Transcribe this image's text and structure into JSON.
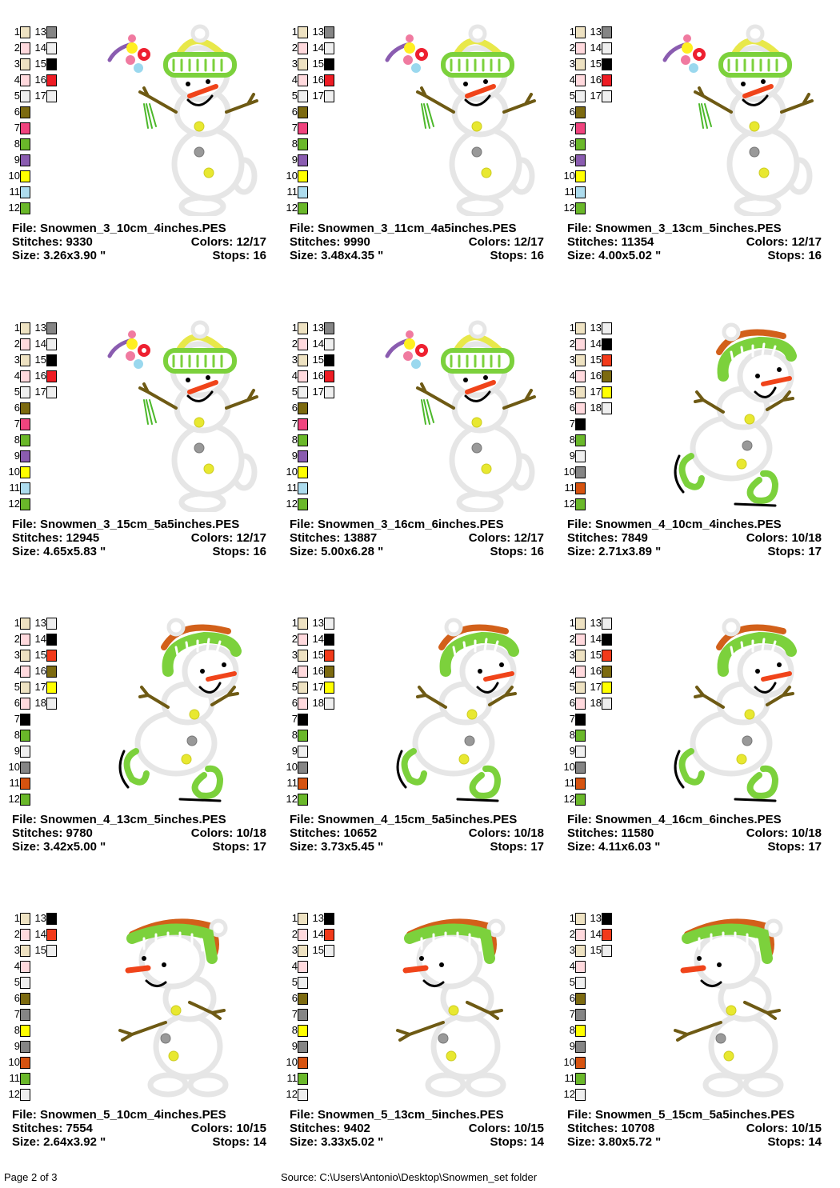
{
  "page": {
    "page_label": "Page 2 of 3",
    "source_label": "Source: C:\\Users\\Antonio\\Desktop\\Snowmen_set folder"
  },
  "palettes": {
    "snowmen3": [
      "#EEE2C2",
      "#FFD9DD",
      "#EEE2C2",
      "#FFD9DD",
      "#EFEFEF",
      "#7C6A10",
      "#F0447E",
      "#6AB82A",
      "#8A5CB0",
      "#FFFF00",
      "#ADDCEE",
      "#6AB82A",
      "#858585",
      "#EFEFEF",
      "#000000",
      "#EE1C24",
      "#EFEFEF"
    ],
    "snowmen4": [
      "#EEE2C2",
      "#FFD9DD",
      "#EEE2C2",
      "#FFD9DD",
      "#EEE2C2",
      "#FFD9DD",
      "#000000",
      "#6AB82A",
      "#EFEFEF",
      "#858585",
      "#D65310",
      "#6AB82A",
      "#EFEFEF",
      "#000000",
      "#F23A1A",
      "#7C6A10",
      "#FFFF00",
      "#EFEFEF"
    ],
    "snowmen5": [
      "#EEE2C2",
      "#FFD9DD",
      "#EEE2C2",
      "#FFD9DD",
      "#EFEFEF",
      "#7C6A10",
      "#858585",
      "#FFFF00",
      "#858585",
      "#D65310",
      "#6AB82A",
      "#EFEFEF",
      "#000000",
      "#F23A1A",
      "#EFEFEF"
    ]
  },
  "cards": [
    {
      "type": "snowmen3",
      "file": "File: Snowmen_3_10cm_4inches.PES",
      "stitches": "Stitches: 9330",
      "colors": "Colors: 12/17",
      "size": "Size: 3.26x3.90 \"",
      "stops": "Stops: 16"
    },
    {
      "type": "snowmen3",
      "file": "File: Snowmen_3_11cm_4a5inches.PES",
      "stitches": "Stitches: 9990",
      "colors": "Colors: 12/17",
      "size": "Size: 3.48x4.35 \"",
      "stops": "Stops: 16"
    },
    {
      "type": "snowmen3",
      "file": "File: Snowmen_3_13cm_5inches.PES",
      "stitches": "Stitches: 11354",
      "colors": "Colors: 12/17",
      "size": "Size: 4.00x5.02 \"",
      "stops": "Stops: 16"
    },
    {
      "type": "snowmen3",
      "file": "File: Snowmen_3_15cm_5a5inches.PES",
      "stitches": "Stitches: 12945",
      "colors": "Colors: 12/17",
      "size": "Size: 4.65x5.83 \"",
      "stops": "Stops: 16"
    },
    {
      "type": "snowmen3",
      "file": "File: Snowmen_3_16cm_6inches.PES",
      "stitches": "Stitches: 13887",
      "colors": "Colors: 12/17",
      "size": "Size: 5.00x6.28 \"",
      "stops": "Stops: 16"
    },
    {
      "type": "snowmen4",
      "file": "File: Snowmen_4_10cm_4inches.PES",
      "stitches": "Stitches: 7849",
      "colors": "Colors: 10/18",
      "size": "Size: 2.71x3.89 \"",
      "stops": "Stops: 17"
    },
    {
      "type": "snowmen4",
      "file": "File: Snowmen_4_13cm_5inches.PES",
      "stitches": "Stitches: 9780",
      "colors": "Colors: 10/18",
      "size": "Size: 3.42x5.00 \"",
      "stops": "Stops: 17"
    },
    {
      "type": "snowmen4",
      "file": "File: Snowmen_4_15cm_5a5inches.PES",
      "stitches": "Stitches: 10652",
      "colors": "Colors: 10/18",
      "size": "Size: 3.73x5.45 \"",
      "stops": "Stops: 17"
    },
    {
      "type": "snowmen4",
      "file": "File: Snowmen_4_16cm_6inches.PES",
      "stitches": "Stitches: 11580",
      "colors": "Colors: 10/18",
      "size": "Size: 4.11x6.03 \"",
      "stops": "Stops: 17"
    },
    {
      "type": "snowmen5",
      "file": "File: Snowmen_5_10cm_4inches.PES",
      "stitches": "Stitches: 7554",
      "colors": "Colors: 10/15",
      "size": "Size: 2.64x3.92 \"",
      "stops": "Stops: 14"
    },
    {
      "type": "snowmen5",
      "file": "File: Snowmen_5_13cm_5inches.PES",
      "stitches": "Stitches: 9402",
      "colors": "Colors: 10/15",
      "size": "Size: 3.33x5.02 \"",
      "stops": "Stops: 14"
    },
    {
      "type": "snowmen5",
      "file": "File: Snowmen_5_15cm_5a5inches.PES",
      "stitches": "Stitches: 10708",
      "colors": "Colors: 10/15",
      "size": "Size: 3.80x5.72 \"",
      "stops": "Stops: 14"
    }
  ]
}
